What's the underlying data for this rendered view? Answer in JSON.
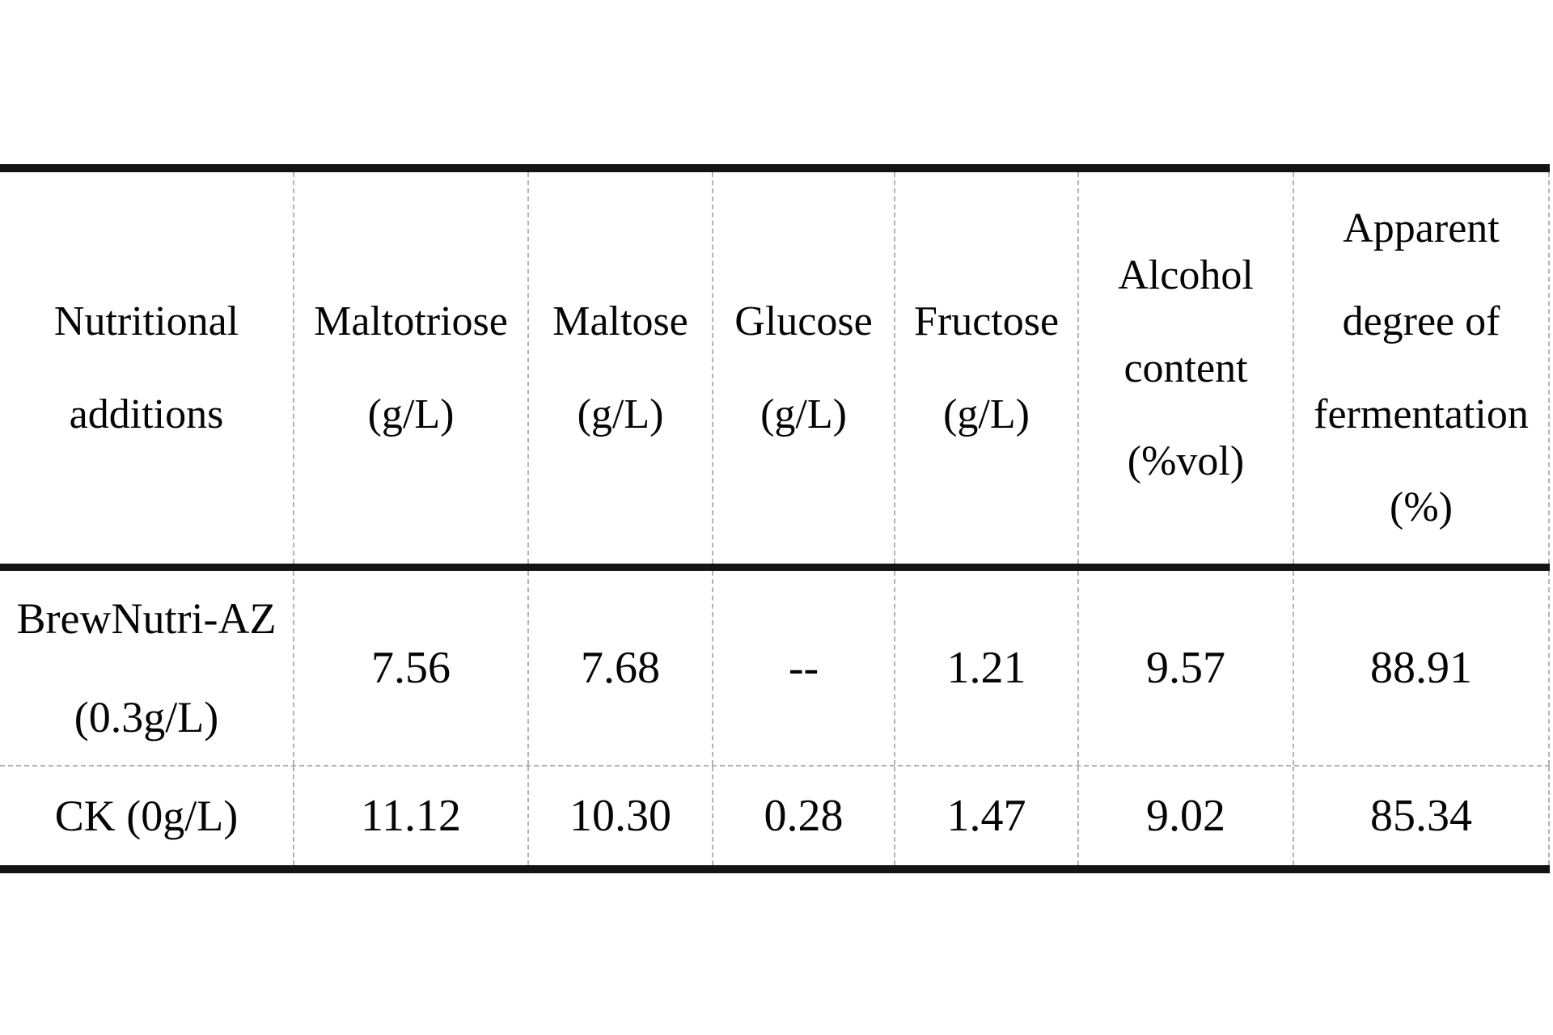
{
  "table": {
    "columns": [
      {
        "lines": [
          "Nutritional",
          "additions"
        ]
      },
      {
        "lines": [
          "Maltotriose",
          "(g/L)"
        ]
      },
      {
        "lines": [
          "Maltose",
          "(g/L)"
        ]
      },
      {
        "lines": [
          "Glucose",
          "(g/L)"
        ]
      },
      {
        "lines": [
          "Fructose",
          "(g/L)"
        ]
      },
      {
        "lines": [
          "Alcohol",
          "content",
          "(%vol)"
        ]
      },
      {
        "lines": [
          "Apparent",
          "degree of",
          "fermentation",
          "(%)"
        ]
      }
    ],
    "rows": [
      {
        "label_lines": [
          "BrewNutri-AZ",
          "(0.3g/L)"
        ],
        "values": [
          "7.56",
          "7.68",
          "--",
          "1.21",
          "9.57",
          "88.91"
        ]
      },
      {
        "label_lines": [
          "CK (0g/L)"
        ],
        "values": [
          "11.12",
          "10.30",
          "0.28",
          "1.47",
          "9.02",
          "85.34"
        ]
      }
    ]
  },
  "colors": {
    "text": "#050505",
    "thick_rule": "#141414",
    "dashed_rule": "#b3b3b3",
    "background": "#ffffff"
  }
}
